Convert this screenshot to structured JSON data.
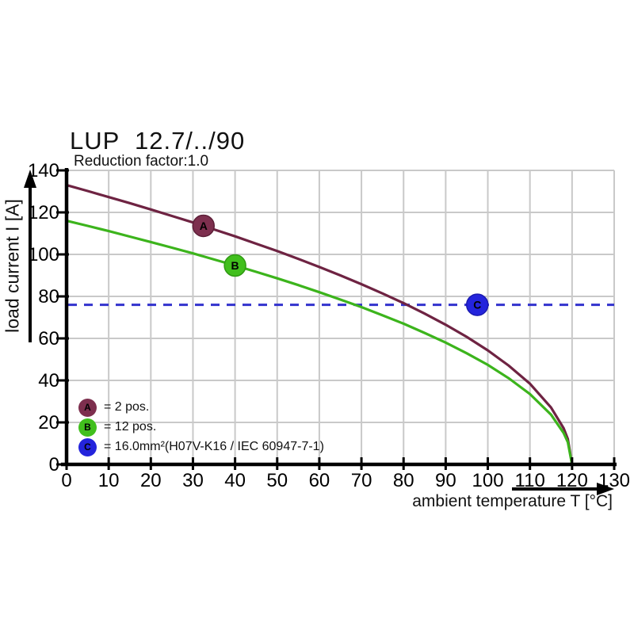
{
  "header": {
    "title": "LUP  12.7/../90",
    "subtitle": "Reduction factor:1.0"
  },
  "axes": {
    "x_label": "ambient temperature T [°C]",
    "y_label": "load current I [A]"
  },
  "chart_data": {
    "type": "line",
    "title": "LUP  12.7/../90",
    "subtitle": "Reduction factor:1.0",
    "xlabel": "ambient temperature T [°C]",
    "ylabel": "load current I [A]",
    "xlim": [
      0,
      130
    ],
    "ylim": [
      0,
      140
    ],
    "xticks": [
      0,
      10,
      20,
      30,
      40,
      50,
      60,
      70,
      80,
      90,
      100,
      110,
      120,
      130
    ],
    "yticks": [
      0,
      20,
      40,
      60,
      80,
      100,
      120,
      140
    ],
    "grid": true,
    "grid_color": "#c9c9c9",
    "axis_color": "#000000",
    "series": [
      {
        "name": "A",
        "legend": "= 2 pos.",
        "color": "#6e2342",
        "points": [
          [
            0,
            133
          ],
          [
            5,
            130.2
          ],
          [
            10,
            127.3
          ],
          [
            15,
            124.4
          ],
          [
            20,
            121.4
          ],
          [
            25,
            118.3
          ],
          [
            30,
            115.2
          ],
          [
            35,
            111.9
          ],
          [
            40,
            108.6
          ],
          [
            45,
            105.1
          ],
          [
            50,
            101.6
          ],
          [
            55,
            97.9
          ],
          [
            60,
            94.0
          ],
          [
            65,
            90.0
          ],
          [
            70,
            85.8
          ],
          [
            75,
            81.4
          ],
          [
            80,
            76.8
          ],
          [
            85,
            71.8
          ],
          [
            90,
            66.5
          ],
          [
            95,
            60.7
          ],
          [
            100,
            54.3
          ],
          [
            105,
            47.0
          ],
          [
            110,
            38.4
          ],
          [
            115,
            27.1
          ],
          [
            118,
            17.2
          ],
          [
            119,
            12.1
          ],
          [
            120,
            0
          ]
        ]
      },
      {
        "name": "B",
        "legend": "= 12 pos.",
        "color": "#3cb41c",
        "points": [
          [
            0,
            116
          ],
          [
            5,
            113.6
          ],
          [
            10,
            111.1
          ],
          [
            15,
            108.5
          ],
          [
            20,
            105.9
          ],
          [
            25,
            103.2
          ],
          [
            30,
            100.5
          ],
          [
            35,
            97.6
          ],
          [
            40,
            94.7
          ],
          [
            45,
            91.7
          ],
          [
            50,
            88.6
          ],
          [
            55,
            85.4
          ],
          [
            60,
            82.0
          ],
          [
            65,
            78.5
          ],
          [
            70,
            74.9
          ],
          [
            75,
            71.0
          ],
          [
            80,
            67.0
          ],
          [
            85,
            62.6
          ],
          [
            90,
            58.0
          ],
          [
            95,
            52.9
          ],
          [
            100,
            47.4
          ],
          [
            105,
            41.0
          ],
          [
            110,
            33.5
          ],
          [
            115,
            23.7
          ],
          [
            118,
            15.0
          ],
          [
            119,
            10.6
          ],
          [
            120,
            0
          ]
        ]
      }
    ],
    "threshold_line": {
      "name": "C",
      "value": 76,
      "style": "dashed",
      "color": "#3232cd"
    },
    "point_markers": [
      {
        "letter": "A",
        "x": 32.5,
        "y": 113.6,
        "fill": "#7d2f4e",
        "stroke": "#5d1f38"
      },
      {
        "letter": "B",
        "x": 40,
        "y": 94.7,
        "fill": "#41bf1d",
        "stroke": "#2f9912"
      },
      {
        "letter": "C",
        "x": 97.5,
        "y": 76,
        "fill": "#2424dc",
        "stroke": "#1a1ab0"
      }
    ],
    "legend": {
      "position": "bottom-left",
      "items": [
        {
          "letter": "A",
          "text": "= 2 pos.",
          "color": "#7d2f4e"
        },
        {
          "letter": "B",
          "text": "= 12 pos.",
          "color": "#41bf1d"
        },
        {
          "letter": "C",
          "text": "= 16.0mm²(H07V-K16 / IEC 60947-7-1)",
          "color": "#2424dc"
        }
      ]
    }
  }
}
